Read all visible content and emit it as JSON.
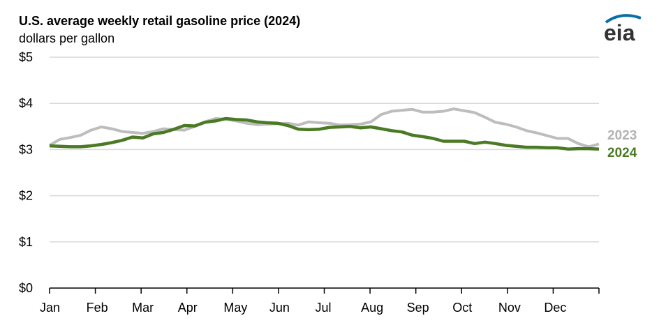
{
  "chart_data": {
    "type": "line",
    "title": "U.S. average weekly retail gasoline price (2024)",
    "subtitle": "dollars per gallon",
    "ylabel": "dollars per gallon",
    "xlabel": "",
    "ylim": [
      0,
      5
    ],
    "y_ticks": [
      0,
      1,
      2,
      3,
      4,
      5
    ],
    "y_tick_labels": [
      "$0",
      "$1",
      "$2",
      "$3",
      "$4",
      "$5"
    ],
    "x_tick_labels": [
      "Jan",
      "Feb",
      "Mar",
      "Apr",
      "May",
      "Jun",
      "Jul",
      "Aug",
      "Sep",
      "Oct",
      "Nov",
      "Dec"
    ],
    "grid": true,
    "legend_placement": "right-end-of-lines",
    "series": [
      {
        "name": "2023",
        "color": "#bdbdbd",
        "values": [
          3.09,
          3.22,
          3.26,
          3.31,
          3.42,
          3.49,
          3.45,
          3.39,
          3.37,
          3.35,
          3.39,
          3.45,
          3.43,
          3.42,
          3.5,
          3.6,
          3.67,
          3.66,
          3.62,
          3.57,
          3.54,
          3.55,
          3.56,
          3.57,
          3.53,
          3.6,
          3.58,
          3.57,
          3.53,
          3.54,
          3.55,
          3.6,
          3.76,
          3.83,
          3.85,
          3.87,
          3.81,
          3.81,
          3.83,
          3.88,
          3.84,
          3.8,
          3.7,
          3.59,
          3.55,
          3.49,
          3.41,
          3.36,
          3.3,
          3.24,
          3.24,
          3.13,
          3.06,
          3.12
        ]
      },
      {
        "name": "2024",
        "color": "#4a7a24",
        "values": [
          3.08,
          3.07,
          3.06,
          3.06,
          3.08,
          3.11,
          3.15,
          3.2,
          3.27,
          3.25,
          3.34,
          3.37,
          3.44,
          3.52,
          3.51,
          3.59,
          3.62,
          3.67,
          3.65,
          3.64,
          3.6,
          3.58,
          3.57,
          3.52,
          3.44,
          3.43,
          3.44,
          3.48,
          3.49,
          3.5,
          3.47,
          3.49,
          3.45,
          3.41,
          3.38,
          3.31,
          3.28,
          3.24,
          3.18,
          3.18,
          3.18,
          3.13,
          3.16,
          3.13,
          3.09,
          3.07,
          3.05,
          3.05,
          3.04,
          3.04,
          3.01,
          3.02,
          3.02,
          3.01
        ]
      }
    ]
  },
  "logo": {
    "text": "eia",
    "color": "#0b6fa4"
  }
}
